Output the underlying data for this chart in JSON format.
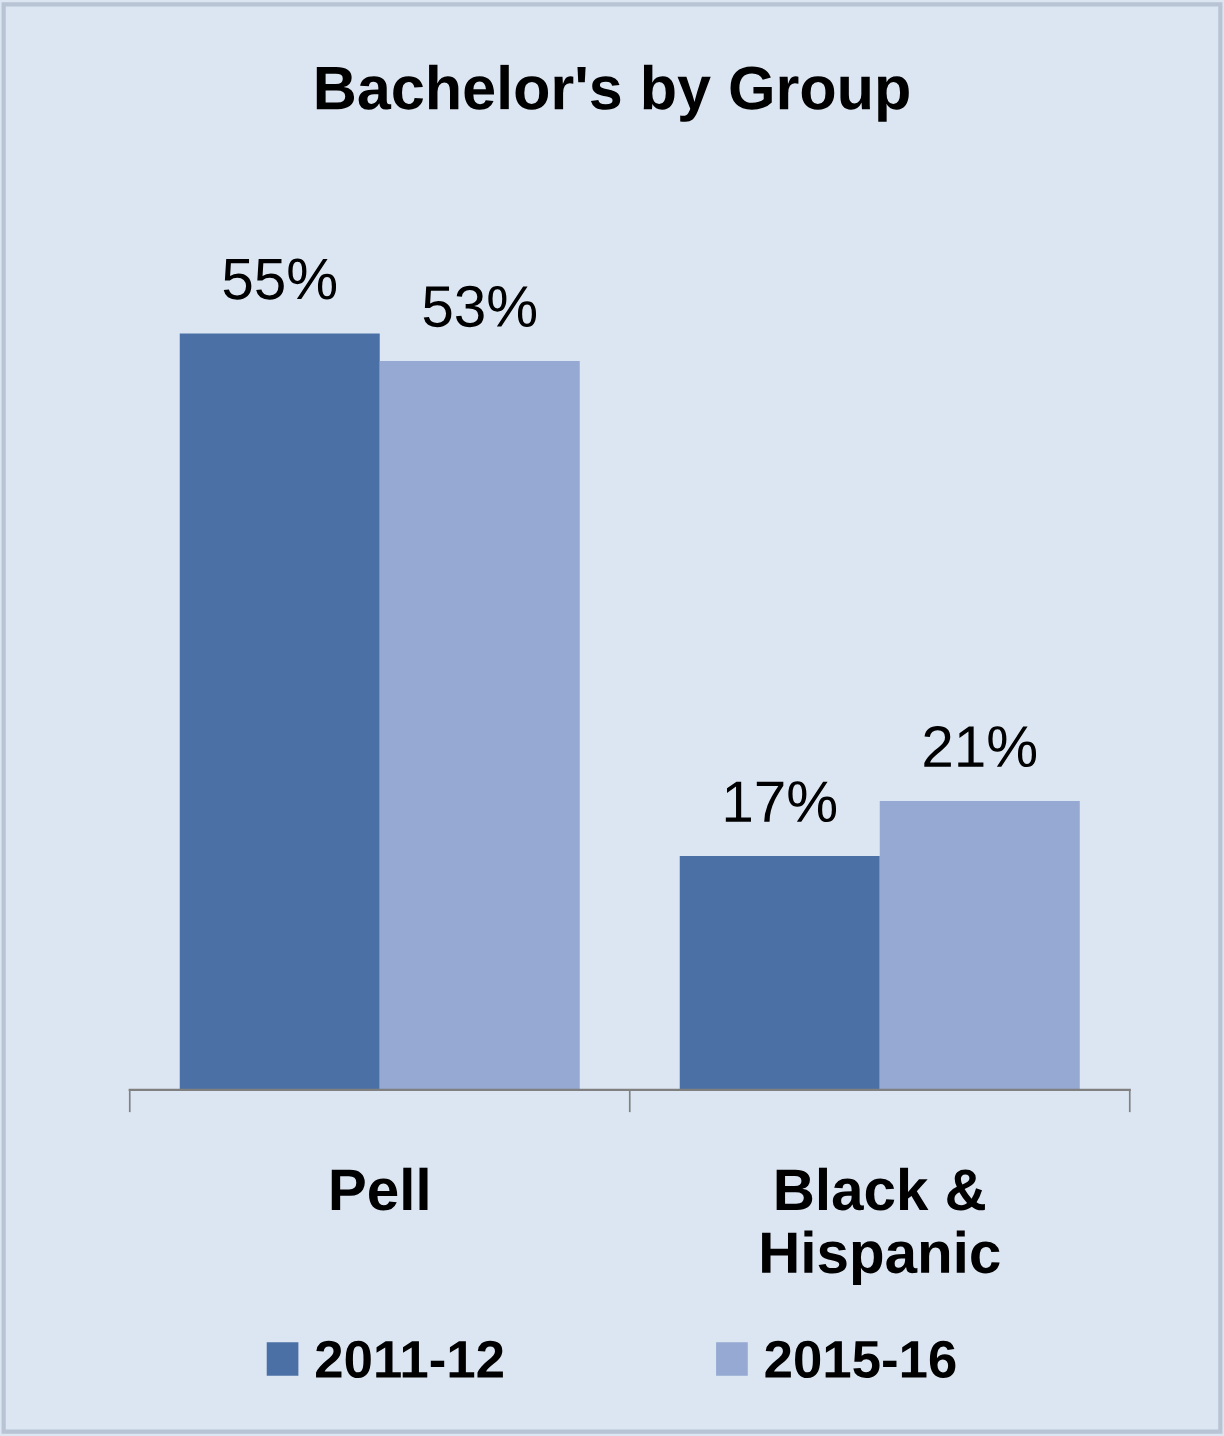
{
  "chart_data": {
    "type": "bar",
    "title": "Bachelor's by Group",
    "categories": [
      "Pell",
      "Black &\nHispanic"
    ],
    "series": [
      {
        "name": "2011-12",
        "color": "#4a70a6",
        "values": [
          55,
          17
        ],
        "value_labels": [
          "55%",
          "17%"
        ]
      },
      {
        "name": "2015-16",
        "color": "#95a9d2",
        "values": [
          53,
          21
        ],
        "value_labels": [
          "53%",
          "21%"
        ]
      }
    ],
    "legend": "bottom",
    "grid": false
  }
}
